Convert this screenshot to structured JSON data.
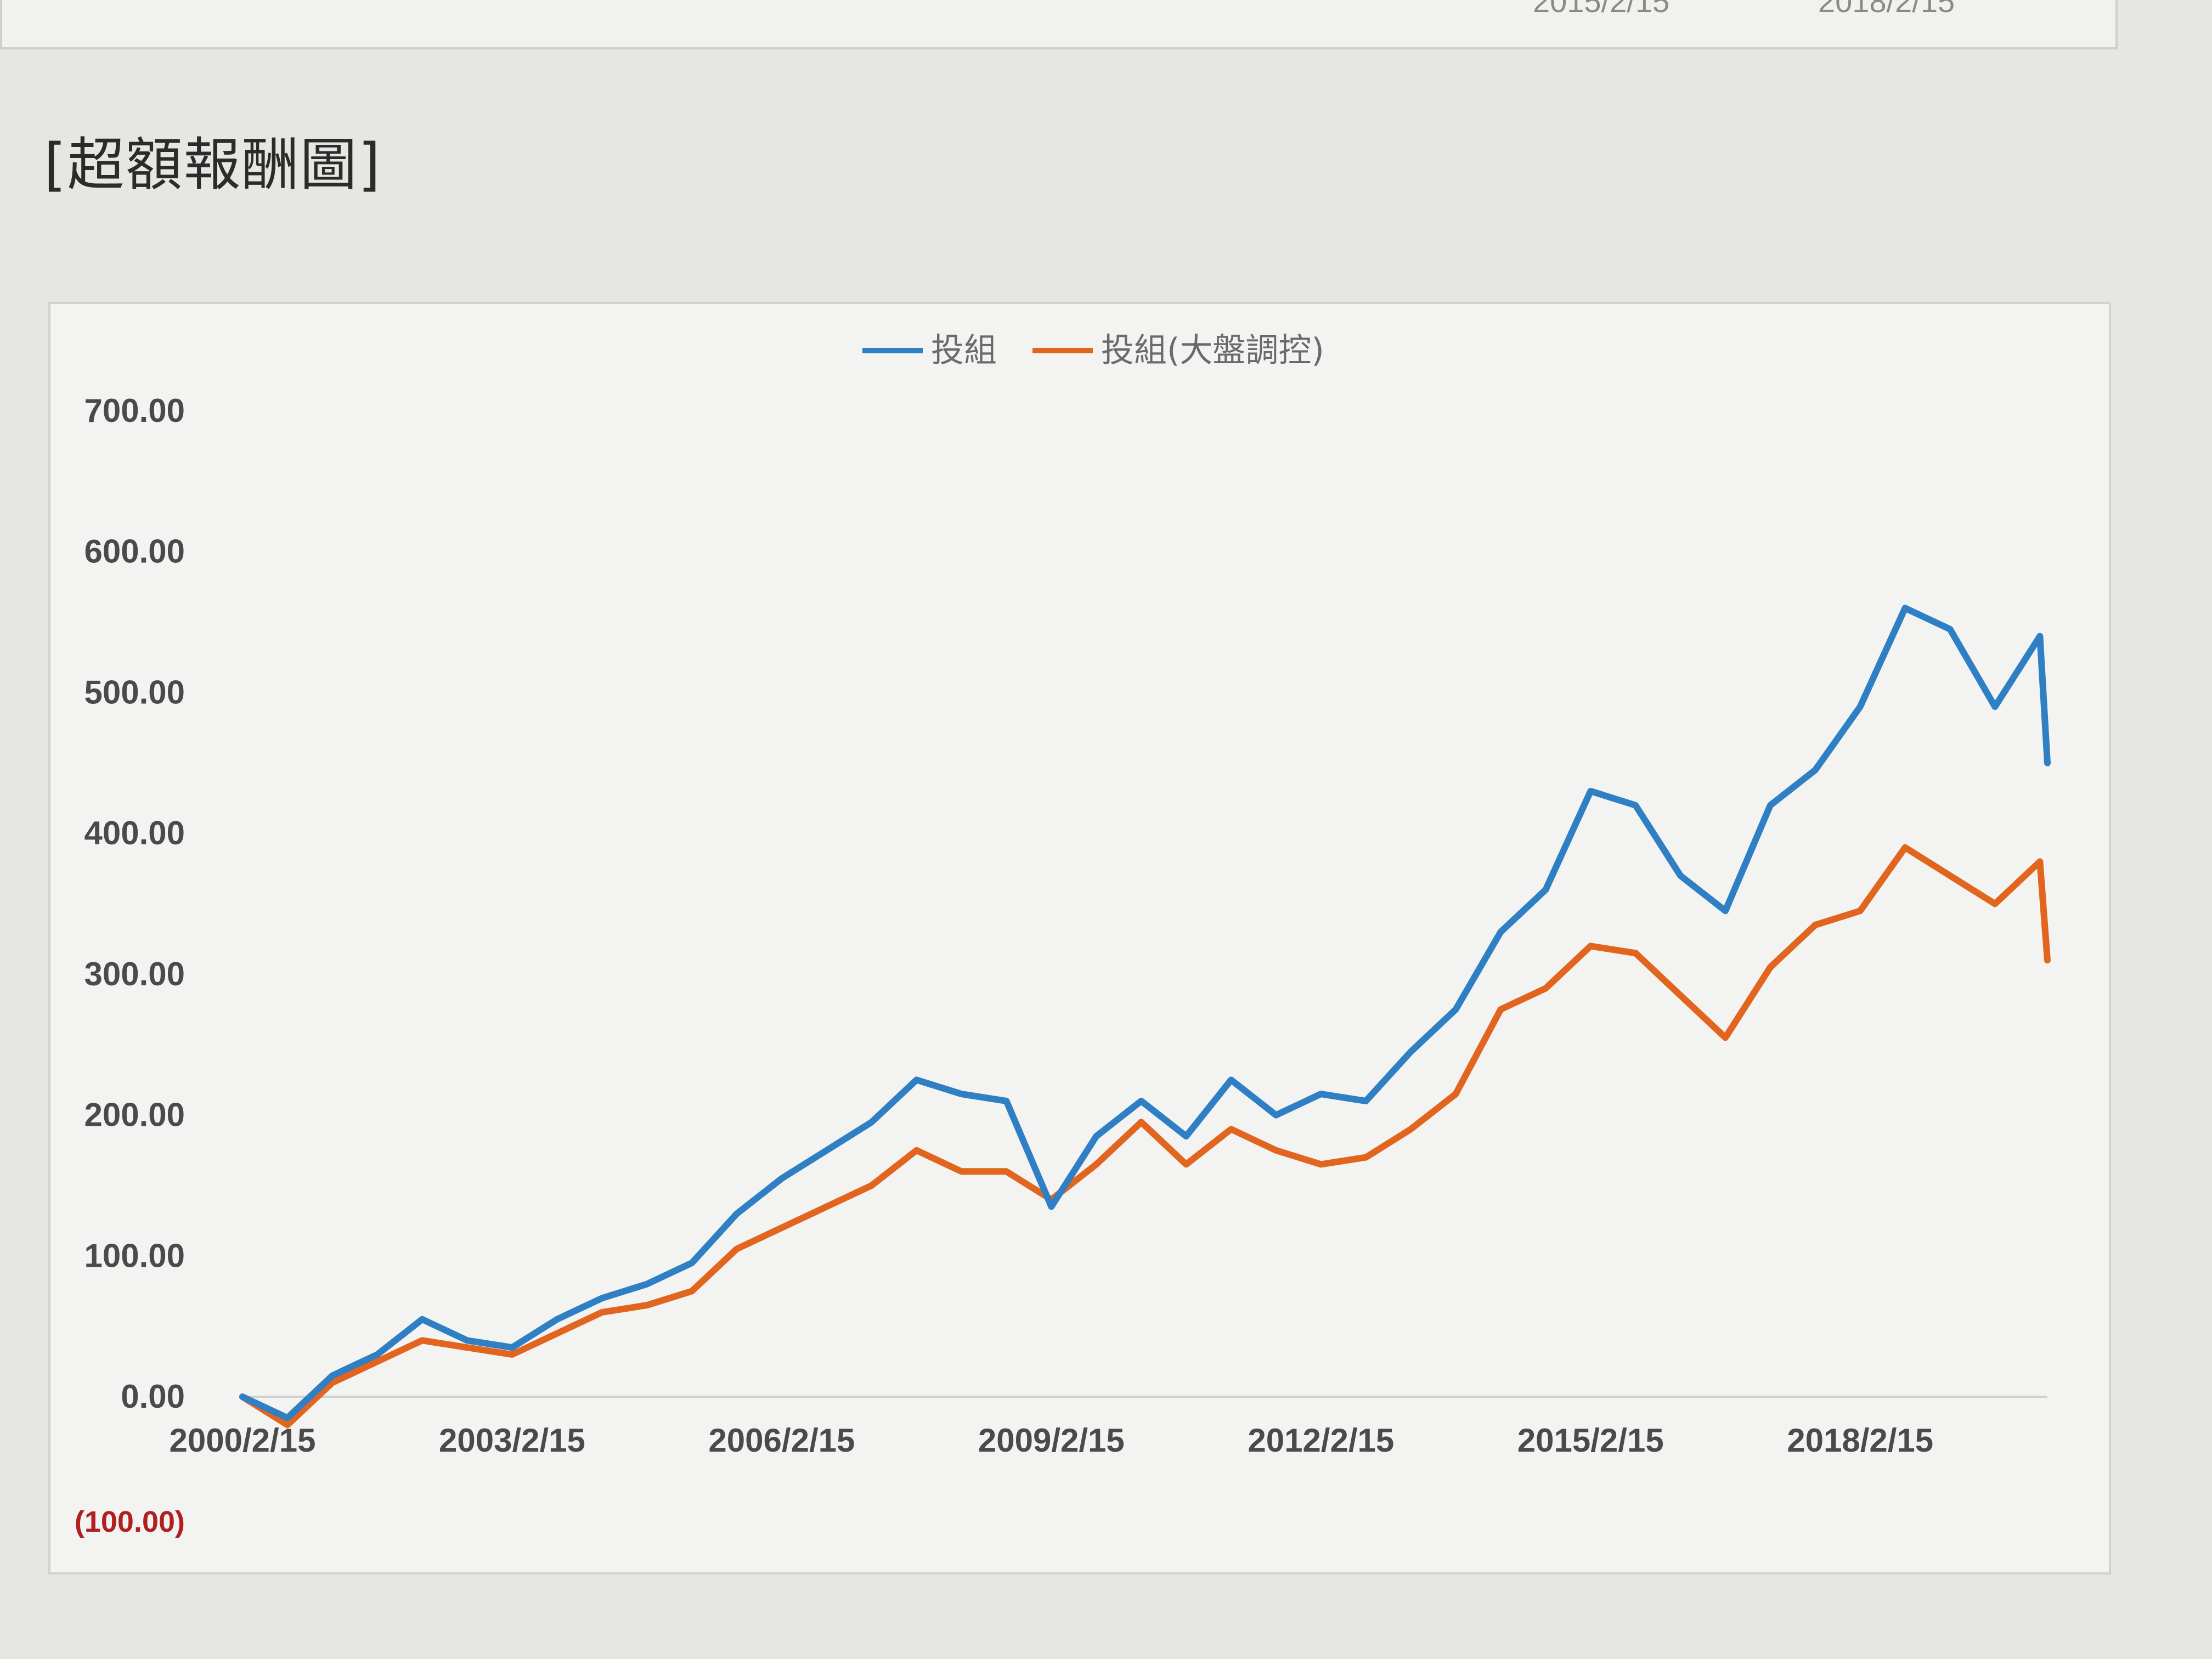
{
  "page": {
    "section_title": "[超額報酬圖]",
    "top_strip_ticks": [
      "2015/2/15",
      "2018/2/15"
    ]
  },
  "colors": {
    "series_1": "#2f7fc4",
    "series_2": "#e2651f",
    "negative_label": "#b02020"
  },
  "chart_data": {
    "type": "line",
    "title": "",
    "xlabel": "",
    "ylabel": "",
    "legend_position": "top-center",
    "grid": false,
    "ylim": [
      -100,
      700
    ],
    "y_ticks": [
      0,
      100,
      200,
      300,
      400,
      500,
      600,
      700
    ],
    "y_tick_labels": [
      "0.00",
      "100.00",
      "200.00",
      "300.00",
      "400.00",
      "500.00",
      "600.00",
      "700.00"
    ],
    "y_negative_label": "(100.00)",
    "x_range": [
      "2000/2/15",
      "2020/3/15"
    ],
    "x_tick_labels": [
      "2000/2/15",
      "2003/2/15",
      "2006/2/15",
      "2009/2/15",
      "2012/2/15",
      "2015/2/15",
      "2018/2/15"
    ],
    "x": [
      "2000/2/15",
      "2000/8/15",
      "2001/2/15",
      "2001/8/15",
      "2002/2/15",
      "2002/8/15",
      "2003/2/15",
      "2003/8/15",
      "2004/2/15",
      "2004/8/15",
      "2005/2/15",
      "2005/8/15",
      "2006/2/15",
      "2006/8/15",
      "2007/2/15",
      "2007/8/15",
      "2008/2/15",
      "2008/8/15",
      "2009/2/15",
      "2009/8/15",
      "2010/2/15",
      "2010/8/15",
      "2011/2/15",
      "2011/8/15",
      "2012/2/15",
      "2012/8/15",
      "2013/2/15",
      "2013/8/15",
      "2014/2/15",
      "2014/8/15",
      "2015/2/15",
      "2015/8/15",
      "2016/2/15",
      "2016/8/15",
      "2017/2/15",
      "2017/8/15",
      "2018/2/15",
      "2018/8/15",
      "2019/2/15",
      "2019/8/15",
      "2020/2/15",
      "2020/3/15"
    ],
    "series": [
      {
        "name": "投組",
        "values": [
          0,
          -15,
          15,
          30,
          55,
          40,
          35,
          55,
          70,
          80,
          95,
          130,
          155,
          175,
          195,
          225,
          215,
          210,
          135,
          185,
          210,
          185,
          225,
          200,
          215,
          210,
          245,
          275,
          330,
          360,
          430,
          420,
          370,
          345,
          420,
          445,
          490,
          560,
          545,
          490,
          540,
          450
        ]
      },
      {
        "name": "投組(大盤調控)",
        "values": [
          0,
          -20,
          10,
          25,
          40,
          35,
          30,
          45,
          60,
          65,
          75,
          105,
          120,
          135,
          150,
          175,
          160,
          160,
          140,
          165,
          195,
          165,
          190,
          175,
          165,
          170,
          190,
          215,
          275,
          290,
          320,
          315,
          285,
          255,
          305,
          335,
          345,
          390,
          370,
          350,
          380,
          310
        ]
      }
    ]
  }
}
